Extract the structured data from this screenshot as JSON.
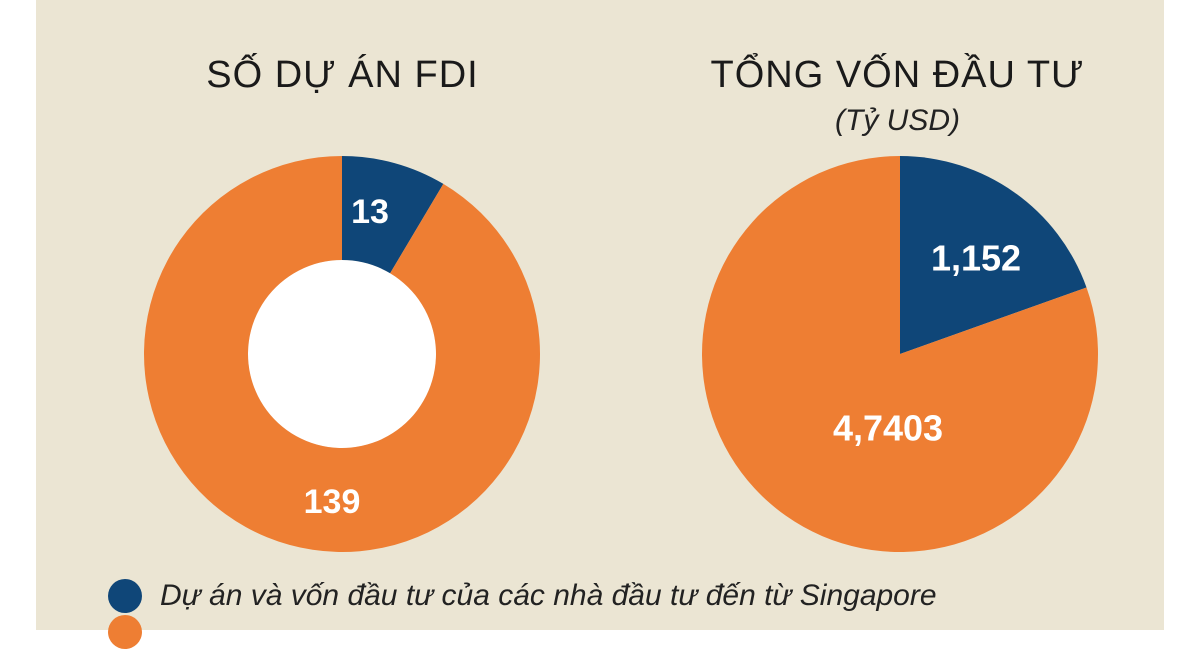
{
  "chart_data": [
    {
      "type": "pie",
      "donut": true,
      "title": "SỐ DỰ ÁN FDI",
      "subtitle": "",
      "slices": [
        {
          "label": "13",
          "value": 13,
          "color": "#0f4678"
        },
        {
          "label": "139",
          "value": 139,
          "color": "#ee7e33"
        }
      ]
    },
    {
      "type": "pie",
      "donut": false,
      "title": "TỔNG VỐN ĐẦU TƯ",
      "subtitle": "(Tỷ USD)",
      "slices": [
        {
          "label": "1,152",
          "value": 1.152,
          "color": "#0f4678"
        },
        {
          "label": "4,7403",
          "value": 4.7403,
          "color": "#ee7e33"
        }
      ]
    }
  ],
  "legend": [
    {
      "text": "Dự án và vốn đầu tư của các nhà đầu tư đến từ Singapore",
      "color": "#0f4678"
    },
    {
      "text": "",
      "color": "#ee7e33"
    }
  ]
}
